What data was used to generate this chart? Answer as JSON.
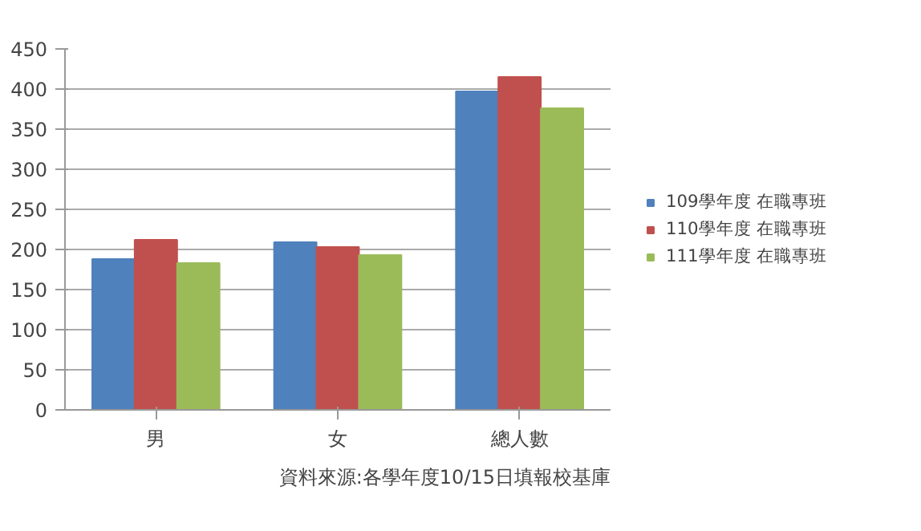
{
  "chart_data": {
    "type": "bar",
    "categories": [
      "男",
      "女",
      "總人數"
    ],
    "series": [
      {
        "name": "109學年度 在職專班",
        "color": "#4f81bd",
        "values": [
          188,
          209,
          397
        ]
      },
      {
        "name": "110學年度 在職專班",
        "color": "#c0504d",
        "values": [
          212,
          203,
          415
        ]
      },
      {
        "name": "111學年度 在職專班",
        "color": "#9bbb59",
        "values": [
          183,
          193,
          376
        ]
      }
    ],
    "ylim": [
      0,
      450
    ],
    "yticks": [
      0,
      50,
      100,
      150,
      200,
      250,
      300,
      350,
      400,
      450
    ],
    "grid": "y",
    "legend": "right",
    "annotations": [
      "資料來源:各學年度10/15日填報校基庫"
    ]
  }
}
